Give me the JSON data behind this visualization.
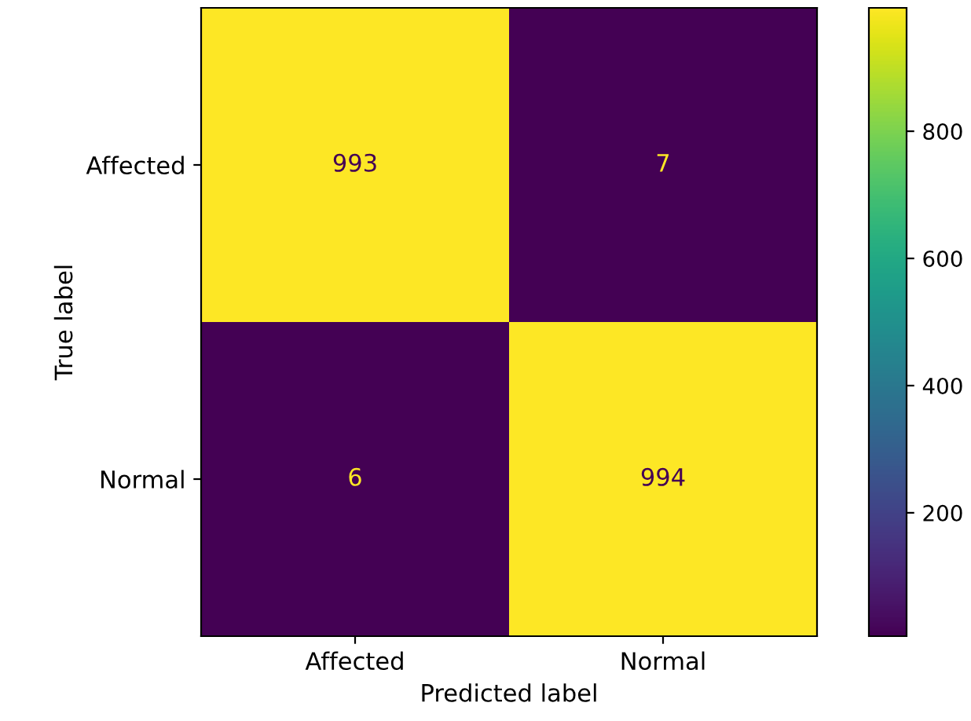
{
  "chart_data": {
    "type": "heatmap",
    "xlabel": "Predicted label",
    "ylabel": "True label",
    "categories": [
      "Affected",
      "Normal"
    ],
    "y_categories": [
      "Affected",
      "Normal"
    ],
    "cells": [
      [
        993,
        7
      ],
      [
        6,
        994
      ]
    ],
    "data_labels": true,
    "clim": [
      6,
      994
    ],
    "cticks": [
      200,
      400,
      600,
      800
    ]
  }
}
